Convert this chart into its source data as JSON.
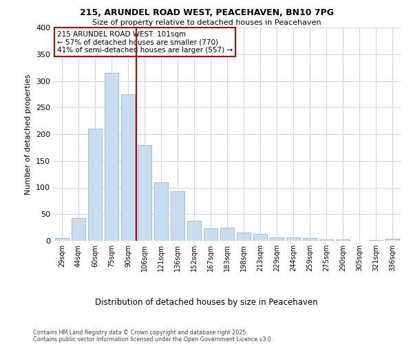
{
  "title1": "215, ARUNDEL ROAD WEST, PEACEHAVEN, BN10 7PG",
  "title2": "Size of property relative to detached houses in Peacehaven",
  "xlabel": "Distribution of detached houses by size in Peacehaven",
  "ylabel": "Number of detached properties",
  "categories": [
    "29sqm",
    "44sqm",
    "60sqm",
    "75sqm",
    "90sqm",
    "106sqm",
    "121sqm",
    "136sqm",
    "152sqm",
    "167sqm",
    "183sqm",
    "198sqm",
    "213sqm",
    "229sqm",
    "244sqm",
    "259sqm",
    "275sqm",
    "290sqm",
    "305sqm",
    "321sqm",
    "336sqm"
  ],
  "values": [
    5,
    43,
    210,
    315,
    275,
    180,
    110,
    93,
    38,
    23,
    25,
    16,
    13,
    7,
    6,
    5,
    2,
    2,
    0,
    1,
    4
  ],
  "bar_color": "#c8ddf0",
  "bar_edge_color": "#a0bcd8",
  "vline_position": 4.5,
  "annotation_line1": "215 ARUNDEL ROAD WEST: 101sqm",
  "annotation_line2": "← 57% of detached houses are smaller (770)",
  "annotation_line3": "41% of semi-detached houses are larger (557) →",
  "vline_color": "#cc0000",
  "annotation_box_edge": "#cc0000",
  "footnote1": "Contains HM Land Registry data © Crown copyright and database right 2025.",
  "footnote2": "Contains public sector information licensed under the Open Government Licence v3.0.",
  "ylim": [
    0,
    400
  ],
  "yticks": [
    0,
    50,
    100,
    150,
    200,
    250,
    300,
    350,
    400
  ],
  "background_color": "#ffffff",
  "grid_color": "#d0d8e8"
}
